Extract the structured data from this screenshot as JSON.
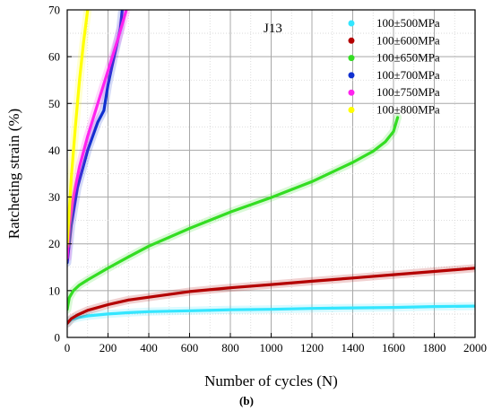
{
  "chart_data": {
    "type": "line",
    "title": "",
    "xlabel": "Number of cycles (N)",
    "ylabel": "Ratcheting strain (%)",
    "xlim": [
      0,
      2000
    ],
    "ylim": [
      0,
      70
    ],
    "xticks": [
      0,
      200,
      400,
      600,
      800,
      1000,
      1200,
      1400,
      1600,
      1800,
      2000
    ],
    "yticks": [
      0,
      10,
      20,
      30,
      40,
      50,
      60,
      70
    ],
    "grid": true,
    "legend_position": "top-right",
    "annotation": "J13",
    "panel_label": "(b)",
    "series": [
      {
        "name": "100±500MPa",
        "color": "#33e6ff",
        "x": [
          0,
          20,
          50,
          100,
          200,
          300,
          400,
          600,
          800,
          1000,
          1200,
          1400,
          1600,
          1800,
          2000
        ],
        "y": [
          3.0,
          3.8,
          4.2,
          4.6,
          5.0,
          5.3,
          5.5,
          5.7,
          5.9,
          6.0,
          6.2,
          6.3,
          6.4,
          6.6,
          6.7
        ]
      },
      {
        "name": "100±600MPa",
        "color": "#b40000",
        "x": [
          0,
          20,
          50,
          100,
          200,
          300,
          400,
          600,
          800,
          1000,
          1200,
          1400,
          1600,
          1800,
          2000
        ],
        "y": [
          3.0,
          4.0,
          4.8,
          5.8,
          7.0,
          8.0,
          8.6,
          9.8,
          10.6,
          11.3,
          12.0,
          12.7,
          13.4,
          14.1,
          14.8
        ]
      },
      {
        "name": "100±650MPa",
        "color": "#33dd22",
        "x": [
          0,
          10,
          30,
          60,
          100,
          200,
          300,
          400,
          600,
          800,
          1000,
          1200,
          1400,
          1500,
          1560,
          1600,
          1620
        ],
        "y": [
          6.0,
          8.5,
          10.0,
          11.2,
          12.3,
          14.8,
          17.2,
          19.5,
          23.3,
          26.8,
          29.9,
          33.3,
          37.4,
          39.8,
          41.8,
          44.0,
          47.0
        ]
      },
      {
        "name": "100±700MPa",
        "color": "#1030d0",
        "x": [
          0,
          20,
          50,
          100,
          150,
          180,
          200,
          230,
          260,
          270
        ],
        "y": [
          16.0,
          24.0,
          32.0,
          40.0,
          46.0,
          48.5,
          54.0,
          60.0,
          66.0,
          70.0
        ]
      },
      {
        "name": "100±750MPa",
        "color": "#ff22ee",
        "x": [
          0,
          10,
          30,
          60,
          100,
          150,
          200,
          250,
          290
        ],
        "y": [
          17.0,
          24.0,
          30.0,
          36.5,
          43.0,
          50.0,
          57.0,
          64.0,
          70.0
        ]
      },
      {
        "name": "100±800MPa",
        "color": "#ffff00",
        "x": [
          0,
          20,
          40,
          60,
          80,
          100
        ],
        "y": [
          20.0,
          34.0,
          45.0,
          55.0,
          63.0,
          70.0
        ]
      }
    ]
  }
}
